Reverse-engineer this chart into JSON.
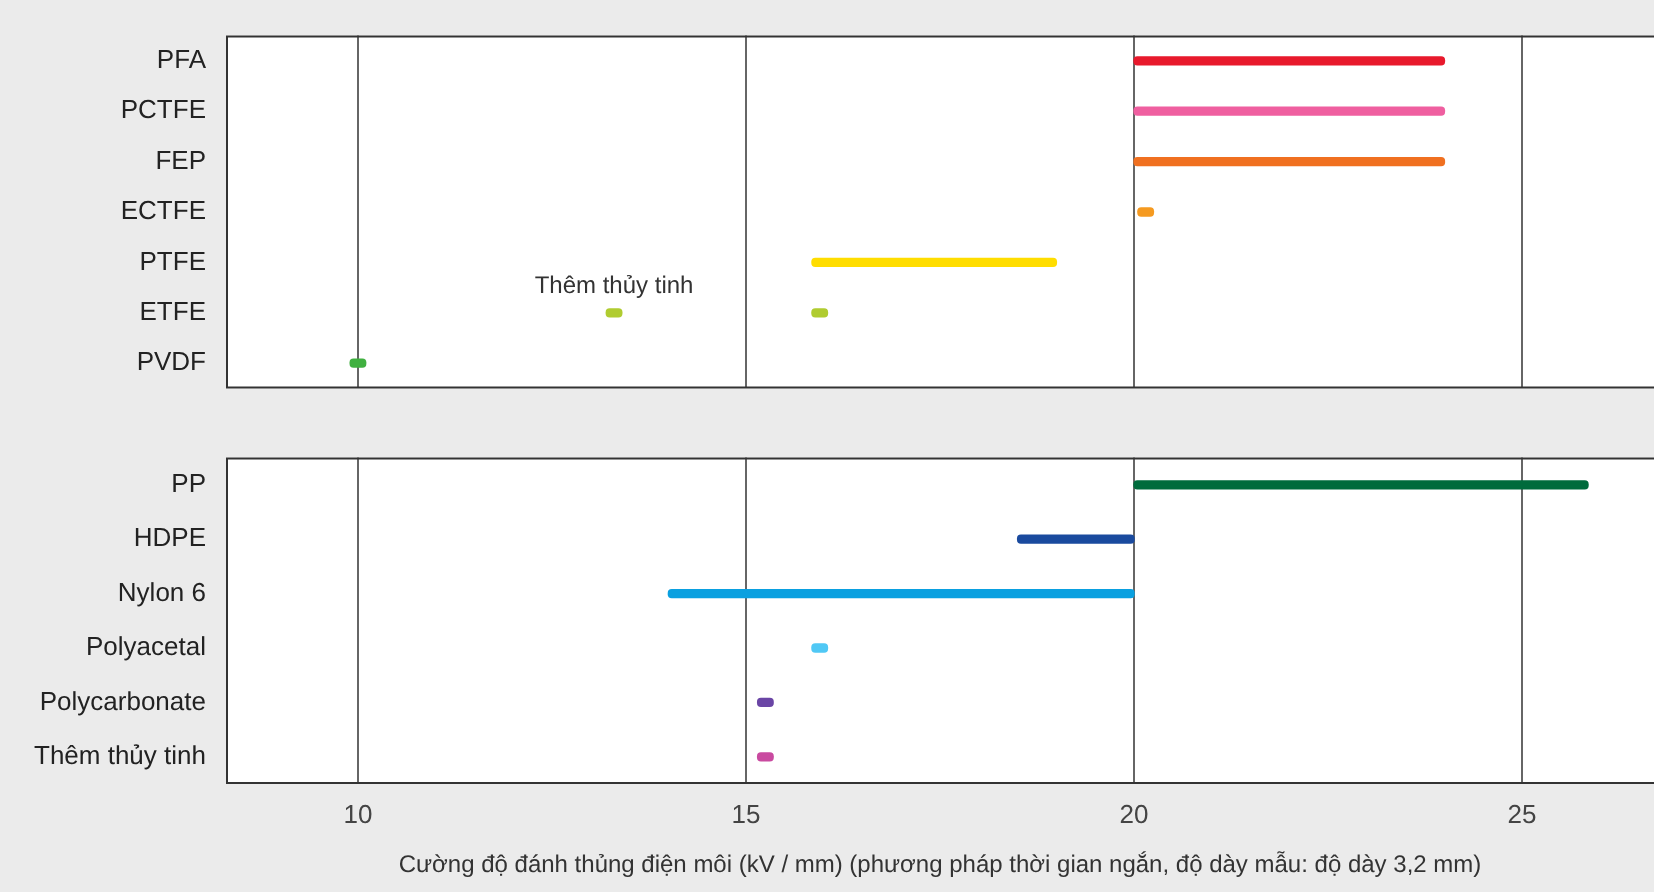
{
  "chart_data": [
    {
      "type": "bar",
      "orientation": "horizontal",
      "tick_labels": "y",
      "categories": [
        "PFA",
        "PCTFE",
        "FEP",
        "ECTFE",
        "PTFE",
        "ETFE",
        "PVDF"
      ],
      "series": [
        {
          "base": [
            20,
            20,
            20,
            20.05,
            15.85,
            15.85,
            9.9
          ],
          "values": [
            4,
            4,
            4,
            0.2,
            3.15,
            0.2,
            0.2
          ],
          "colors": [
            "#e8192c",
            "#ef5fa0",
            "#f07020",
            "#f59a20",
            "#ffdd00",
            "#b0cc30",
            "#40b040"
          ]
        },
        {
          "base": [
            null,
            null,
            null,
            null,
            null,
            13.2,
            null
          ],
          "values": [
            null,
            null,
            null,
            null,
            null,
            0.2,
            null
          ],
          "color": "#b0cc30"
        }
      ],
      "annotations": [
        {
          "text": "Thêm thủy tinh",
          "x": 13.3,
          "y": "ETFE"
        }
      ],
      "xlim": [
        8.3,
        26.7
      ],
      "xticks": [
        10,
        15,
        20,
        25
      ],
      "grid": "x",
      "legend": false
    },
    {
      "type": "bar",
      "orientation": "horizontal",
      "xlabel": "Cường độ đánh thủng điện môi (kV / mm) (phương pháp thời gian ngắn, độ dày mẫu: độ dày 3,2 mm)",
      "categories": [
        "PP",
        "HDPE",
        "Nylon 6",
        "Polyacetal",
        "Polycarbonate",
        "Thêm thủy tinh"
      ],
      "series": [
        {
          "base": [
            20,
            18.5,
            14,
            15.85,
            15.15,
            15.15
          ],
          "values": [
            5.85,
            1.5,
            6,
            0.2,
            0.2,
            0.2
          ],
          "colors": [
            "#006b3c",
            "#1a4a9e",
            "#0aa0e0",
            "#50c8f5",
            "#6a45a5",
            "#c94aa0"
          ]
        }
      ],
      "xlim": [
        8.3,
        26.7
      ],
      "xticks": [
        10,
        15,
        20,
        25
      ],
      "grid": "x",
      "legend": false
    }
  ]
}
